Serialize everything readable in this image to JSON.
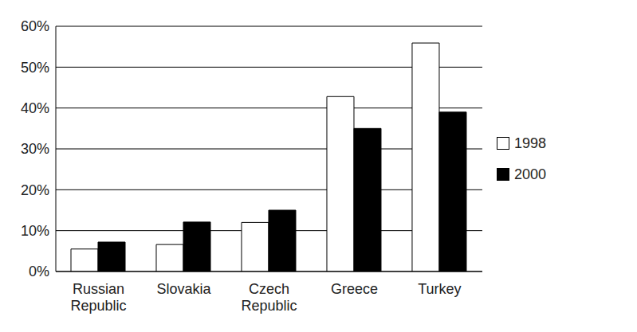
{
  "chart_data": {
    "type": "bar",
    "categories": [
      "Russian Republic",
      "Slovakia",
      "Czech Republic",
      "Greece",
      "Turkey"
    ],
    "series": [
      {
        "name": "1998",
        "color": "#ffffff",
        "values": [
          5.5,
          6.6,
          12,
          42.8,
          55.9
        ]
      },
      {
        "name": "2000",
        "color": "#000000",
        "values": [
          7.2,
          12.1,
          15,
          35,
          39
        ]
      }
    ],
    "ylim": [
      0,
      60
    ],
    "yticks": [
      {
        "value": 0,
        "label": "0%"
      },
      {
        "value": 10,
        "label": "10%"
      },
      {
        "value": 20,
        "label": "20%"
      },
      {
        "value": 30,
        "label": "30%"
      },
      {
        "value": 40,
        "label": "40%"
      },
      {
        "value": 50,
        "label": "50%"
      },
      {
        "value": 60,
        "label": "60%"
      }
    ],
    "grid": true,
    "legend": "right"
  }
}
